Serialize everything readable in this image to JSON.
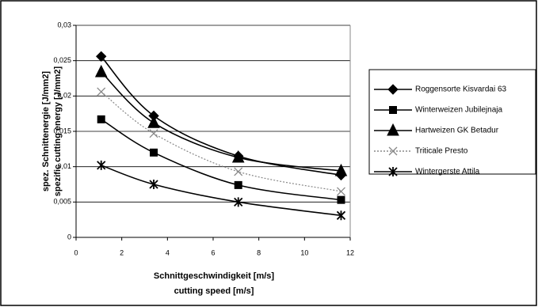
{
  "chart_data": {
    "type": "line",
    "y_label": [
      "spez. Schnittenergie [J/mm2]",
      "spezific cutting energy [J/mm2]"
    ],
    "x_label": [
      "Schnittgeschwindigkeit [m/s]",
      "cutting speed [m/s]"
    ],
    "x": [
      1.1,
      3.4,
      7.1,
      11.6
    ],
    "series": [
      {
        "name": "Roggensorte Kisvardai 63",
        "color": "#000000",
        "marker": "diamond",
        "dash": "solid",
        "values": [
          0.0256,
          0.0172,
          0.0115,
          0.0088
        ]
      },
      {
        "name": "Winterweizen Jubilejnaja",
        "color": "#000000",
        "marker": "square",
        "dash": "solid",
        "values": [
          0.0167,
          0.012,
          0.0074,
          0.0053
        ]
      },
      {
        "name": "Hartweizen GK Betadur",
        "color": "#000000",
        "marker": "triangle",
        "dash": "solid",
        "values": [
          0.0234,
          0.0162,
          0.0113,
          0.0094
        ]
      },
      {
        "name": "Triticale Presto",
        "color": "#888888",
        "marker": "cross",
        "dash": "dotted",
        "values": [
          0.0206,
          0.0147,
          0.0093,
          0.0065
        ]
      },
      {
        "name": "Wintergerste Attila",
        "color": "#000000",
        "marker": "asterisk",
        "dash": "solid",
        "values": [
          0.0102,
          0.0075,
          0.005,
          0.0031
        ]
      }
    ],
    "xlim": [
      0,
      12
    ],
    "xticks": [
      0,
      2,
      4,
      6,
      8,
      10,
      12
    ],
    "ylim": [
      0,
      0.03
    ],
    "yticks": [
      0,
      {
        "value": 0.005,
        "label": "0,005"
      },
      {
        "value": 0.01,
        "label": "0,01"
      },
      {
        "value": 0.015,
        "label": "0,015"
      },
      {
        "value": 0.02,
        "label": "0,02"
      },
      {
        "value": 0.025,
        "label": "0,025"
      },
      {
        "value": 0.03,
        "label": "0,03"
      }
    ],
    "grid": true
  }
}
